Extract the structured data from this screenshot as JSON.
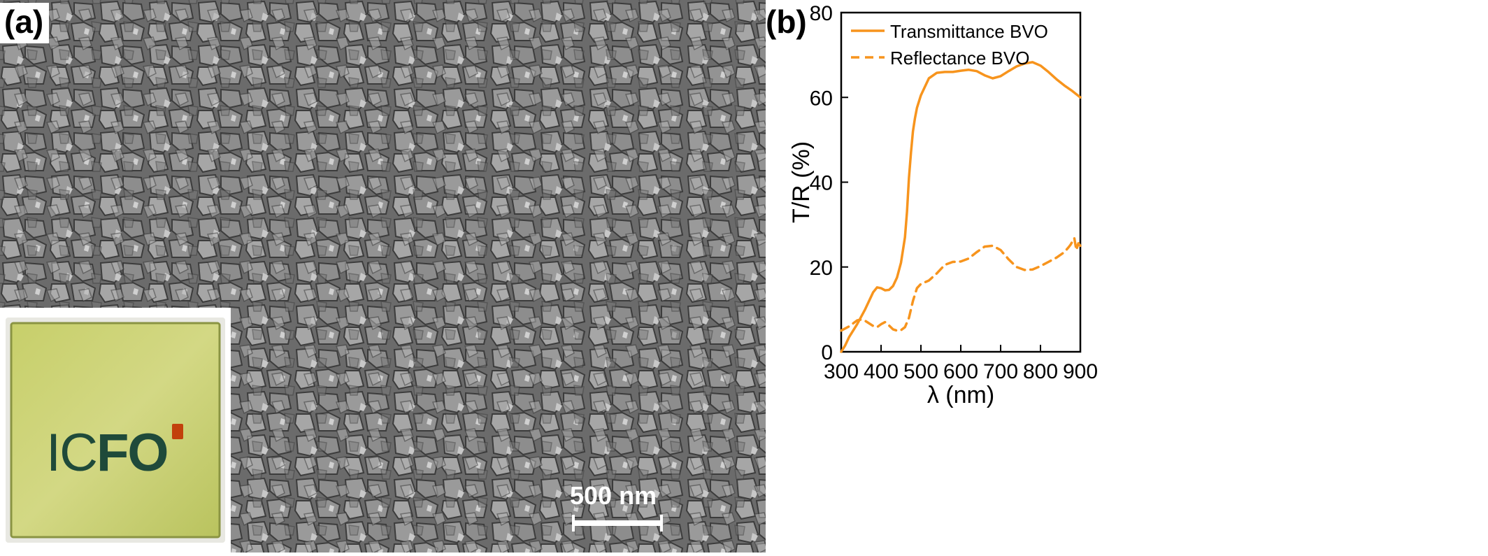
{
  "panel_a": {
    "label": "(a)",
    "scale_bar": "500 nm",
    "inset_logo": {
      "thin": "IC",
      "bold": "FO"
    }
  },
  "panel_b": {
    "label": "(b)"
  },
  "colors": {
    "curve": "#f7941d",
    "sem_background": "#7d7d7d",
    "inset_glass": "#cdd37a"
  },
  "chart_data": {
    "type": "line",
    "xlabel": "λ (nm)",
    "ylabel": "T/R (%)",
    "xlim": [
      300,
      900
    ],
    "ylim": [
      0,
      80
    ],
    "xticks": [
      300,
      400,
      500,
      600,
      700,
      800,
      900
    ],
    "yticks": [
      0,
      20,
      40,
      60,
      80
    ],
    "grid": false,
    "legend": "top-left",
    "series": [
      {
        "name": "Transmittance BVO",
        "style": "solid",
        "x": [
          300,
          310,
          320,
          340,
          360,
          380,
          390,
          400,
          410,
          420,
          430,
          440,
          450,
          460,
          465,
          470,
          475,
          480,
          485,
          490,
          500,
          520,
          540,
          560,
          580,
          600,
          620,
          640,
          660,
          680,
          700,
          720,
          740,
          760,
          780,
          800,
          820,
          840,
          860,
          880,
          900
        ],
        "y": [
          0,
          1.5,
          3.5,
          6.5,
          10,
          14,
          15.2,
          15,
          14.5,
          14.6,
          15.5,
          17.5,
          21,
          27,
          33,
          41,
          47,
          52,
          55,
          57.5,
          60.5,
          64.5,
          65.8,
          66,
          66,
          66.3,
          66.5,
          66.2,
          65.2,
          64.5,
          65,
          66.2,
          67.3,
          68,
          68.3,
          67.5,
          66,
          64.3,
          62.8,
          61.5,
          60
        ]
      },
      {
        "name": "Reflectance BVO",
        "style": "dashed",
        "x": [
          300,
          320,
          340,
          350,
          360,
          380,
          390,
          400,
          410,
          420,
          430,
          440,
          450,
          460,
          470,
          480,
          490,
          500,
          520,
          540,
          560,
          580,
          600,
          620,
          640,
          660,
          680,
          700,
          720,
          740,
          760,
          780,
          800,
          820,
          840,
          860,
          870,
          875,
          880,
          885,
          890,
          895,
          900
        ],
        "y": [
          5,
          6,
          7.4,
          7.6,
          7.3,
          6.1,
          5.8,
          6.5,
          7,
          6.2,
          5.3,
          5,
          5.1,
          5.8,
          8,
          12,
          15,
          16,
          16.8,
          18.5,
          20.5,
          21.2,
          21.3,
          22,
          23.5,
          24.8,
          25,
          24,
          21.8,
          20,
          19.3,
          19.4,
          20.2,
          21.2,
          22.2,
          23.5,
          24.6,
          25.2,
          26,
          26.8,
          24,
          25.6,
          25
        ]
      }
    ]
  }
}
